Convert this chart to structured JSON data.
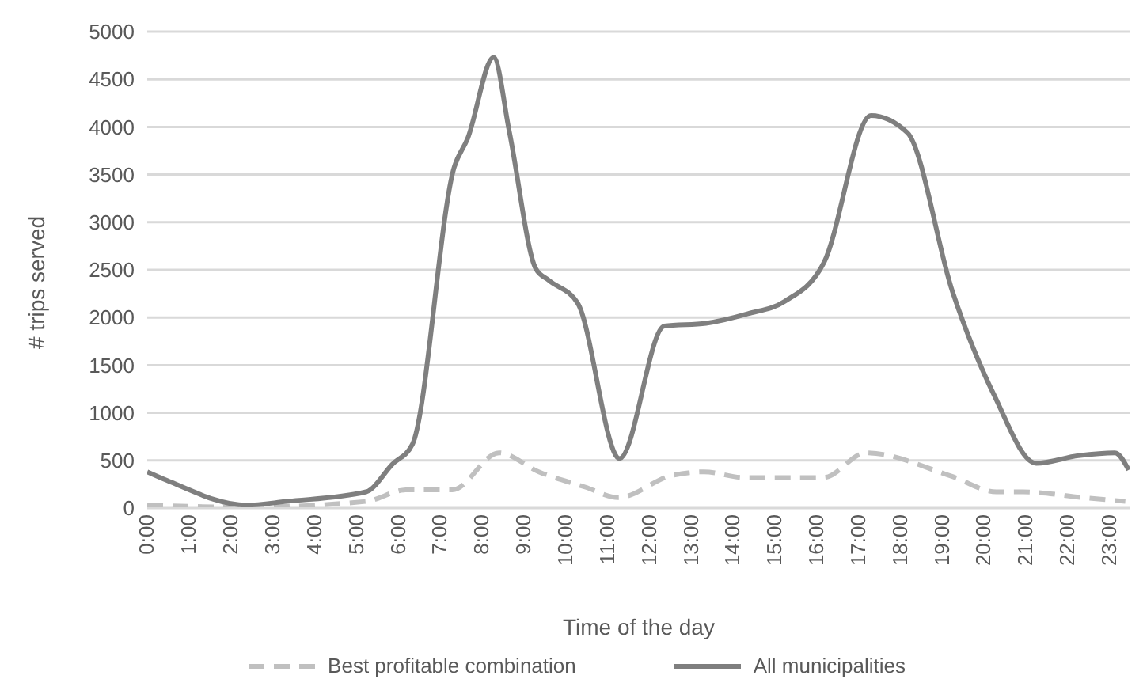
{
  "chart_data": {
    "type": "line",
    "xlabel": "Time of the day",
    "ylabel": "# trips served",
    "xlim": [
      0,
      23.5
    ],
    "xticks": [
      {
        "value": 0,
        "label": "0:00"
      },
      {
        "value": 1,
        "label": "1:00"
      },
      {
        "value": 2,
        "label": "2:00"
      },
      {
        "value": 3,
        "label": "3:00"
      },
      {
        "value": 4,
        "label": "4:00"
      },
      {
        "value": 5,
        "label": "5:00"
      },
      {
        "value": 6,
        "label": "6:00"
      },
      {
        "value": 7,
        "label": "7:00"
      },
      {
        "value": 8,
        "label": "8:00"
      },
      {
        "value": 9,
        "label": "9:00"
      },
      {
        "value": 10,
        "label": "10:00"
      },
      {
        "value": 11,
        "label": "11:00"
      },
      {
        "value": 12,
        "label": "12:00"
      },
      {
        "value": 13,
        "label": "13:00"
      },
      {
        "value": 14,
        "label": "14:00"
      },
      {
        "value": 15,
        "label": "15:00"
      },
      {
        "value": 16,
        "label": "16:00"
      },
      {
        "value": 17,
        "label": "17:00"
      },
      {
        "value": 18,
        "label": "18:00"
      },
      {
        "value": 19,
        "label": "19:00"
      },
      {
        "value": 20,
        "label": "20:00"
      },
      {
        "value": 21,
        "label": "21:00"
      },
      {
        "value": 22,
        "label": "22:00"
      },
      {
        "value": 23,
        "label": "23:00"
      }
    ],
    "ylim": [
      0,
      5000
    ],
    "yticks": [
      0,
      500,
      1000,
      1500,
      2000,
      2500,
      3000,
      3500,
      4000,
      4500,
      5000
    ],
    "grid": "y",
    "legend": "bottom",
    "marker": "none",
    "series": [
      {
        "name": "Best profitable combination",
        "color": "#c0c0c0",
        "line_style": "dashed",
        "x": [
          0,
          2.37,
          5.23,
          6.18,
          7.29,
          8.41,
          9.36,
          10.47,
          11.26,
          12.52,
          13.31,
          14.28,
          16.17,
          17.18,
          19.19,
          20.3,
          20.94,
          22.37,
          23.38
        ],
        "values": [
          30,
          10,
          70,
          190,
          190,
          580,
          380,
          220,
          110,
          340,
          380,
          320,
          320,
          580,
          340,
          170,
          170,
          110,
          70
        ]
      },
      {
        "name": "All municipalities",
        "color": "#7f7f7f",
        "line_style": "solid",
        "x": [
          0,
          0.47,
          2.37,
          3.33,
          5.23,
          5.86,
          6.34,
          7.34,
          7.66,
          8.28,
          8.66,
          9.29,
          9.6,
          10.29,
          11.29,
          12.36,
          13.36,
          14.36,
          15.24,
          16.18,
          17.3,
          18.17,
          19.25,
          20.25,
          21.25,
          22.26,
          23.13,
          23.46
        ],
        "values": [
          380,
          290,
          30,
          70,
          170,
          460,
          670,
          3580,
          3880,
          4730,
          3940,
          2510,
          2390,
          2150,
          520,
          1910,
          1940,
          2040,
          2170,
          2580,
          4120,
          3940,
          2270,
          1180,
          470,
          550,
          580,
          400
        ]
      }
    ]
  }
}
